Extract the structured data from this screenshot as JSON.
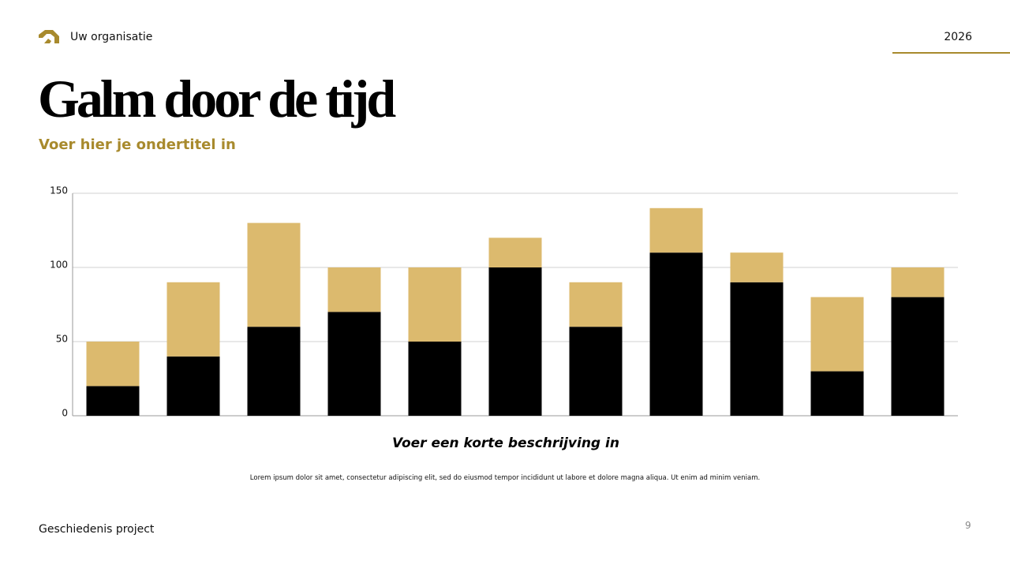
{
  "header": {
    "organisation": "Uw organisatie",
    "year": "2026"
  },
  "title": "Galm door de tijd",
  "subtitle": "Voer hier je ondertitel in",
  "chart_data": {
    "type": "stacked-bar",
    "categories": [
      null,
      null,
      null,
      null,
      null,
      null,
      null,
      null,
      null,
      null,
      null
    ],
    "series": [
      {
        "color": "#000000",
        "values": [
          20,
          40,
          60,
          70,
          50,
          100,
          60,
          110,
          90,
          30,
          80
        ]
      },
      {
        "color": "#dcba6e",
        "values": [
          30,
          50,
          70,
          30,
          50,
          20,
          30,
          30,
          20,
          50,
          20
        ]
      }
    ],
    "ylim": [
      0,
      150
    ],
    "yticks": [
      0,
      50,
      100,
      150
    ],
    "grid": true
  },
  "caption": "Voer een korte beschrijving in",
  "body": "Lorem ipsum dolor sit amet, consectetur adipiscing elit, sed do eiusmod tempor incididunt ut labore et dolore magna aliqua. Ut enim ad minim veniam.",
  "footer": {
    "project": "Geschiedenis project",
    "page": "9"
  }
}
